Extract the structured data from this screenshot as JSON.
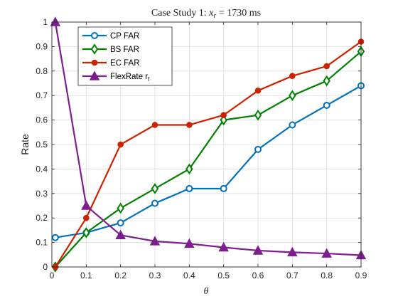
{
  "chart_data": {
    "type": "line",
    "title": "Case Study 1: ",
    "title_math": {
      "var": "x",
      "sub": "r",
      "rest": " = 1730 ms"
    },
    "xlabel": "θ",
    "ylabel": "Rate",
    "x": [
      0.01,
      0.1,
      0.2,
      0.3,
      0.4,
      0.5,
      0.6,
      0.7,
      0.8,
      0.9
    ],
    "xlim": [
      0,
      0.9
    ],
    "ylim": [
      0,
      1
    ],
    "xticks": [
      "0",
      "0.1",
      "0.2",
      "0.3",
      "0.4",
      "0.5",
      "0.6",
      "0.7",
      "0.8",
      "0.9"
    ],
    "yticks": [
      "0",
      "0.1",
      "0.2",
      "0.3",
      "0.4",
      "0.5",
      "0.6",
      "0.7",
      "0.8",
      "0.9",
      "1"
    ],
    "grid": true,
    "legend_position": "top-left",
    "series": [
      {
        "name": "CP FAR",
        "color": "#0072BD",
        "marker": "circle",
        "values": [
          0.12,
          0.14,
          0.18,
          0.26,
          0.32,
          0.32,
          0.48,
          0.58,
          0.66,
          0.74
        ]
      },
      {
        "name": "BS FAR",
        "color": "#008000",
        "marker": "diamond",
        "values": [
          0.0,
          0.14,
          0.24,
          0.32,
          0.4,
          0.6,
          0.62,
          0.7,
          0.76,
          0.88
        ]
      },
      {
        "name": "EC FAR",
        "color": "#CC2200",
        "marker": "dot",
        "values": [
          0.0,
          0.2,
          0.5,
          0.58,
          0.58,
          0.62,
          0.72,
          0.78,
          0.82,
          0.92
        ]
      },
      {
        "name": "FlexRate r",
        "name_sub": "f",
        "color": "#7E1E8E",
        "marker": "triangle",
        "values": [
          1.0,
          0.25,
          0.13,
          0.105,
          0.095,
          0.08,
          0.067,
          0.06,
          0.055,
          0.048
        ]
      }
    ]
  }
}
